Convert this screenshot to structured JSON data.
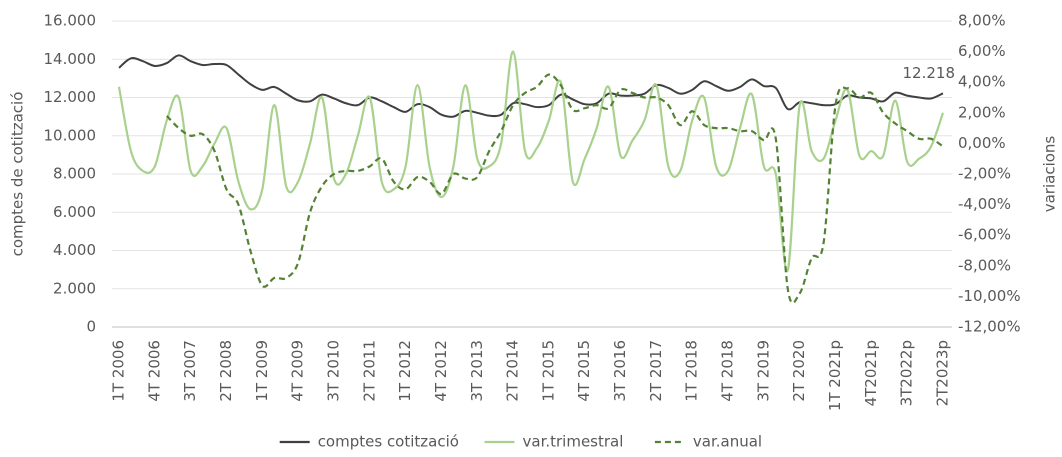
{
  "chart_data": {
    "type": "line",
    "y_label": "comptes de cotització",
    "y2_label": "variacions",
    "categories": [
      "1T 2006",
      null,
      null,
      "4T 2006",
      null,
      null,
      "3T 2007",
      null,
      null,
      "2T 2008",
      null,
      null,
      "1T 2009",
      null,
      null,
      "4T 2009",
      null,
      null,
      "3T 2010",
      null,
      null,
      "2T 2011",
      null,
      null,
      "1T 2012",
      null,
      null,
      "4T 2012",
      null,
      null,
      "3T 2013",
      null,
      null,
      "2T 2014",
      null,
      null,
      "1T 2015",
      null,
      null,
      "4T 2015",
      null,
      null,
      "3T 2016",
      null,
      null,
      "2T 2017",
      null,
      null,
      "1T 2018",
      null,
      null,
      "4T 2018",
      null,
      null,
      "3T 2019",
      null,
      null,
      "2T 2020",
      null,
      null,
      "1T 2021p",
      null,
      null,
      "4T2021p",
      null,
      null,
      "3T2022p",
      null,
      null,
      "2T2023p"
    ],
    "series": [
      {
        "name": "comptes cotització",
        "color": "#404040",
        "style": "solid",
        "axis": "y",
        "values": [
          13550,
          14050,
          13900,
          13650,
          13800,
          14200,
          13900,
          13700,
          13750,
          13700,
          13200,
          12700,
          12400,
          12550,
          12200,
          11850,
          11800,
          12150,
          11950,
          11700,
          11600,
          12000,
          11800,
          11500,
          11250,
          11650,
          11500,
          11100,
          11000,
          11300,
          11200,
          11050,
          11100,
          11700,
          11650,
          11500,
          11600,
          12150,
          11900,
          11650,
          11700,
          12200,
          12100,
          12100,
          12200,
          12650,
          12500,
          12200,
          12400,
          12850,
          12600,
          12350,
          12550,
          12950,
          12600,
          12500,
          11400,
          11750,
          11700,
          11600,
          11650,
          12100,
          12000,
          11950,
          11800,
          12250,
          12100,
          12000,
          11950,
          12218
        ],
        "value_labels": [
          null,
          null,
          null,
          null,
          null,
          null,
          null,
          null,
          null,
          null,
          null,
          null,
          null,
          null,
          null,
          null,
          null,
          null,
          null,
          null,
          null,
          null,
          null,
          null,
          null,
          null,
          null,
          null,
          null,
          null,
          null,
          null,
          null,
          null,
          null,
          null,
          null,
          null,
          null,
          null,
          null,
          null,
          null,
          null,
          null,
          null,
          null,
          null,
          null,
          null,
          null,
          null,
          null,
          null,
          null,
          null,
          null,
          null,
          null,
          null,
          null,
          null,
          null,
          null,
          null,
          null,
          null,
          null,
          null,
          "12.218"
        ]
      },
      {
        "name": "var.trimestral",
        "color": "#a9d18e",
        "style": "solid",
        "axis": "y2",
        "values": [
          3.7,
          -0.5,
          -1.8,
          -1.5,
          1.5,
          3.0,
          -1.8,
          -1.5,
          0,
          1.0,
          -2.5,
          -4.3,
          -3.0,
          2.5,
          -2.8,
          -2.5,
          0,
          3.0,
          -2.3,
          -2.0,
          0.5,
          3.0,
          -2.5,
          -3.0,
          -1.5,
          3.8,
          -1.5,
          -3.5,
          -1.5,
          3.8,
          -1.0,
          -1.5,
          0,
          6.0,
          -0.5,
          -0.3,
          1.5,
          4.0,
          -2.5,
          -1.0,
          1.0,
          3.7,
          -0.8,
          0.2,
          1.5,
          3.8,
          -1.5,
          -1.8,
          1.5,
          3.0,
          -1.5,
          -1.8,
          1.0,
          3.2,
          -1.5,
          -2.0,
          -8.3,
          2.5,
          -0.5,
          -1.0,
          1.5,
          3.5,
          -0.8,
          -0.5,
          -0.8,
          2.8,
          -1.2,
          -1.0,
          -0.2,
          2.0
        ]
      },
      {
        "name": "var.anual",
        "color": "#548235",
        "style": "dashed",
        "axis": "y2",
        "values": [
          null,
          null,
          null,
          null,
          1.8,
          1.0,
          0.5,
          0.6,
          -0.5,
          -3.0,
          -4.0,
          -7.0,
          -9.3,
          -8.8,
          -8.8,
          -7.8,
          -4.5,
          -2.8,
          -2.0,
          -1.8,
          -1.8,
          -1.5,
          -1.0,
          -2.5,
          -3.0,
          -2.2,
          -2.5,
          -3.3,
          -2.0,
          -2.3,
          -2.2,
          -0.5,
          0.8,
          2.5,
          3.3,
          3.7,
          4.5,
          3.8,
          2.2,
          2.3,
          2.5,
          2.3,
          3.5,
          3.3,
          3.0,
          3.0,
          2.5,
          1.2,
          2.1,
          1.2,
          1.0,
          1.0,
          0.8,
          0.8,
          0.2,
          0.3,
          -9.5,
          -9.8,
          -7.5,
          -6.5,
          2.5,
          3.6,
          3.0,
          3.3,
          2.0,
          1.3,
          0.8,
          0.3,
          0.3,
          -0.2
        ]
      }
    ],
    "ylim": [
      0,
      16000
    ],
    "yticks": [
      0,
      {
        "value": 2000,
        "label": "2.000"
      },
      {
        "value": 4000,
        "label": "4.000"
      },
      {
        "value": 6000,
        "label": "6.000"
      },
      {
        "value": 8000,
        "label": "8.000"
      },
      {
        "value": 10000,
        "label": "10.000"
      },
      {
        "value": 12000,
        "label": "12.000"
      },
      {
        "value": 14000,
        "label": "14.000"
      },
      {
        "value": 16000,
        "label": "16.000"
      }
    ],
    "y2lim": [
      -12,
      8
    ],
    "y2ticks": [
      {
        "value": -12,
        "label": "-12,00%"
      },
      {
        "value": -10,
        "label": "-10,00%"
      },
      {
        "value": -8,
        "label": "-8,00%"
      },
      {
        "value": -6,
        "label": "-6,00%"
      },
      {
        "value": -4,
        "label": "-4,00%"
      },
      {
        "value": -2,
        "label": "-2,00%"
      },
      {
        "value": 0,
        "label": "0,00%"
      },
      {
        "value": 2,
        "label": "2,00%"
      },
      {
        "value": 4,
        "label": "4,00%"
      },
      {
        "value": 6,
        "label": "6,00%"
      },
      {
        "value": 8,
        "label": "8,00%"
      }
    ],
    "grid": true,
    "legend": "bottom"
  }
}
